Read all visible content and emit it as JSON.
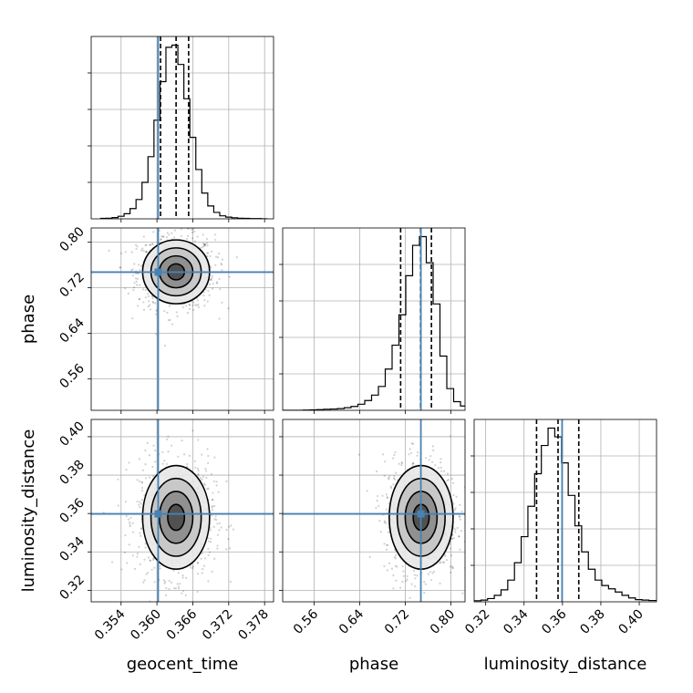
{
  "chart_data": {
    "type": "corner",
    "parameters": [
      "geocent_time",
      "phase",
      "luminosity_distance"
    ],
    "axis_labels": {
      "geocent_time": "geocent_time",
      "phase": "phase",
      "luminosity_distance": "luminosity_distance"
    },
    "ranges": {
      "geocent_time": [
        0.349,
        0.3795
      ],
      "phase": [
        0.505,
        0.825
      ],
      "luminosity_distance": [
        0.314,
        0.409
      ]
    },
    "ticks": {
      "geocent_time": [
        0.354,
        0.36,
        0.366,
        0.372,
        0.378
      ],
      "phase": [
        0.56,
        0.64,
        0.72,
        0.8
      ],
      "luminosity_distance": [
        0.32,
        0.34,
        0.36,
        0.38,
        0.4
      ]
    },
    "tick_labels": {
      "geocent_time": [
        "0.354",
        "0.360",
        "0.366",
        "0.372",
        "0.378"
      ],
      "phase": [
        "0.56",
        "0.64",
        "0.72",
        "0.80"
      ],
      "luminosity_distance": [
        "0.32",
        "0.34",
        "0.36",
        "0.38",
        "0.40"
      ]
    },
    "truths": {
      "geocent_time": 0.3602,
      "phase": 0.7475,
      "luminosity_distance": 0.3598
    },
    "quantiles": {
      "geocent_time": [
        0.3606,
        0.3632,
        0.3653
      ],
      "phase": [
        0.712,
        0.747,
        0.766
      ],
      "luminosity_distance": [
        0.3465,
        0.3577,
        0.3685
      ]
    },
    "marginals": {
      "geocent_time": {
        "edges": [
          0.3505,
          0.3515,
          0.3525,
          0.3535,
          0.3545,
          0.3555,
          0.3565,
          0.3575,
          0.3585,
          0.3595,
          0.3605,
          0.3615,
          0.3625,
          0.3635,
          0.3645,
          0.3655,
          0.3665,
          0.3675,
          0.3685,
          0.3695,
          0.3705,
          0.3715,
          0.3725,
          0.3735,
          0.3745,
          0.3755,
          0.3765,
          0.3775,
          0.3785
        ],
        "counts": [
          2,
          3,
          6,
          12,
          24,
          48,
          90,
          170,
          290,
          460,
          640,
          800,
          810,
          720,
          560,
          380,
          230,
          120,
          60,
          30,
          14,
          8,
          5,
          3,
          2,
          1,
          1,
          0
        ]
      },
      "phase": {
        "edges": [
          0.505,
          0.517,
          0.529,
          0.541,
          0.553,
          0.565,
          0.577,
          0.589,
          0.601,
          0.613,
          0.625,
          0.637,
          0.649,
          0.661,
          0.673,
          0.685,
          0.697,
          0.709,
          0.721,
          0.733,
          0.745,
          0.757,
          0.769,
          0.781,
          0.793,
          0.805,
          0.817,
          0.825
        ],
        "counts": [
          0,
          0,
          0,
          1,
          2,
          3,
          5,
          6,
          8,
          12,
          18,
          28,
          45,
          70,
          110,
          190,
          300,
          440,
          620,
          760,
          800,
          680,
          490,
          250,
          100,
          40,
          20
        ]
      },
      "luminosity_distance": {
        "edges": [
          0.314,
          0.3175,
          0.321,
          0.3245,
          0.328,
          0.3315,
          0.335,
          0.3385,
          0.342,
          0.3455,
          0.349,
          0.3525,
          0.356,
          0.3595,
          0.363,
          0.3665,
          0.37,
          0.3735,
          0.377,
          0.3805,
          0.384,
          0.3875,
          0.391,
          0.3945,
          0.398,
          0.4015,
          0.405,
          0.409
        ],
        "counts": [
          5,
          8,
          15,
          30,
          55,
          100,
          180,
          300,
          440,
          590,
          720,
          800,
          760,
          640,
          490,
          350,
          230,
          150,
          100,
          75,
          60,
          45,
          30,
          18,
          10,
          8,
          6
        ]
      }
    },
    "joint": [
      {
        "x": "geocent_time",
        "y": "phase",
        "center": [
          0.3632,
          0.748
        ],
        "sigma": [
          0.0028,
          0.028
        ]
      },
      {
        "x": "geocent_time",
        "y": "luminosity_distance",
        "center": [
          0.3632,
          0.358
        ],
        "sigma": [
          0.0028,
          0.0135
        ]
      },
      {
        "x": "phase",
        "y": "luminosity_distance",
        "center": [
          0.748,
          0.358
        ],
        "sigma": [
          0.028,
          0.0135
        ]
      }
    ],
    "contour_levels_sigma": [
      0.5,
      1.0,
      1.5,
      2.0
    ]
  }
}
